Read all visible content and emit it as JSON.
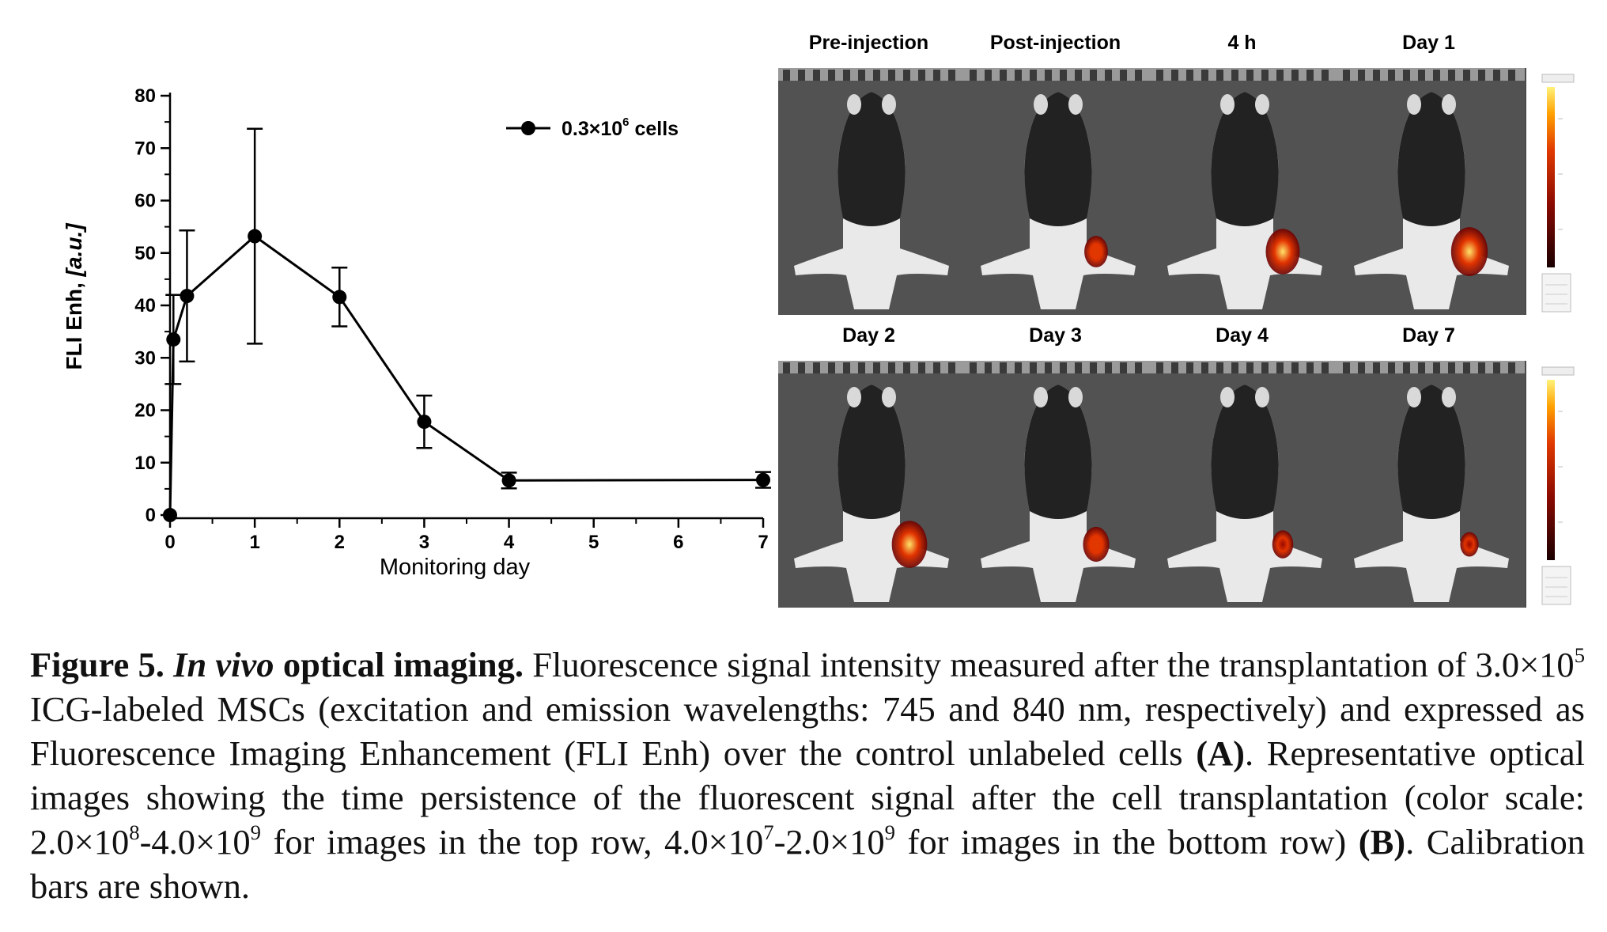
{
  "chart_data": {
    "type": "line",
    "xlabel": "Monitoring day",
    "ylabel": "FLI Enh, [a.u.]",
    "xlim": [
      0,
      7
    ],
    "ylim": [
      0,
      80
    ],
    "x_ticks": [
      "0",
      "1",
      "2",
      "3",
      "4",
      "5",
      "6",
      "7"
    ],
    "y_ticks": [
      "0",
      "10",
      "20",
      "30",
      "40",
      "50",
      "60",
      "70",
      "80"
    ],
    "grid": false,
    "legend_position": "top-right",
    "series": [
      {
        "name": "0.3×10",
        "name_sup": "6",
        "name_suffix": " cells",
        "x": [
          0,
          0.04,
          0.2,
          1,
          2,
          3,
          4,
          7
        ],
        "y": [
          0,
          33.5,
          41.8,
          53.2,
          41.6,
          17.8,
          6.6,
          6.7
        ],
        "err": [
          0,
          8.5,
          12.5,
          20.5,
          5.6,
          5,
          1.5,
          1.5
        ],
        "color": "#000000"
      }
    ]
  },
  "panel_b": {
    "top_titles": [
      "Pre-injection",
      "Post-injection",
      "4 h",
      "Day 1"
    ],
    "bottom_titles": [
      "Day 2",
      "Day 3",
      "Day 4",
      "Day 7"
    ],
    "top_signal": [
      0,
      0.45,
      0.85,
      0.95
    ],
    "bottom_signal": [
      0.9,
      0.55,
      0.35,
      0.25
    ]
  },
  "caption": {
    "fig_label": "Figure 5.",
    "title_italic": "In vivo",
    "title_rest": "optical imaging.",
    "s1": "Fluorescence signal intensity measured after the transplantation of 3.0×10",
    "s1_sup": "5",
    "s2": "ICG-labeled MSCs (excitation and emission wavelengths: 745 and 840 nm, respectively) and expressed as Fluorescence Imaging Enhancement (FLI Enh) over the control unlabeled cells",
    "ref_a": "(A)",
    "s3": ". Representative optical images showing the time persistence of the fluorescent signal after the cell transplantation (color scale: 2.0×10",
    "sup8": "8",
    "s4": "-4.0×10",
    "sup9a": "9",
    "s5": "for images in the top row, 4.0×10",
    "sup7": "7",
    "s6": "-2.0×10",
    "sup9b": "9",
    "s7": "for images in the bottom row)",
    "ref_b": "(B)",
    "s8": ". Calibration bars are shown."
  }
}
